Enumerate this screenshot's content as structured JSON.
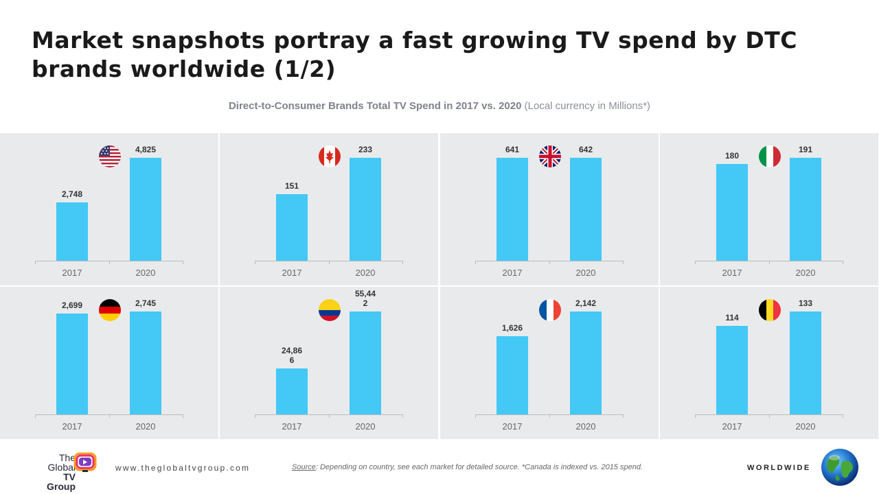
{
  "title": "Market snapshots portray a fast growing TV spend by DTC brands worldwide (1/2)",
  "subtitle_bold": "Direct-to-Consumer Brands Total TV Spend in 2017 vs. 2020",
  "subtitle_rest": "(Local currency in Millions*)",
  "colors": {
    "bar": "#44c8f5",
    "panel": "#e9eaec",
    "axis": "#b9bbbf",
    "label": "#333333",
    "tick": "#666666"
  },
  "chart_data": [
    {
      "type": "bar",
      "market": "United States",
      "flag_icon": "us-flag-icon",
      "categories": [
        "2017",
        "2020"
      ],
      "values": [
        2748,
        4825
      ],
      "value_labels": [
        "2,748",
        "4,825"
      ]
    },
    {
      "type": "bar",
      "market": "Canada",
      "flag_icon": "canada-flag-icon",
      "categories": [
        "2017",
        "2020"
      ],
      "values": [
        151,
        233
      ],
      "value_labels": [
        "151",
        "233"
      ]
    },
    {
      "type": "bar",
      "market": "United Kingdom",
      "flag_icon": "uk-flag-icon",
      "categories": [
        "2017",
        "2020"
      ],
      "values": [
        641,
        642
      ],
      "value_labels": [
        "641",
        "642"
      ]
    },
    {
      "type": "bar",
      "market": "Italy",
      "flag_icon": "italy-flag-icon",
      "categories": [
        "2017",
        "2020"
      ],
      "values": [
        180,
        191
      ],
      "value_labels": [
        "180",
        "191"
      ]
    },
    {
      "type": "bar",
      "market": "Germany",
      "flag_icon": "germany-flag-icon",
      "categories": [
        "2017",
        "2020"
      ],
      "values": [
        2699,
        2745
      ],
      "value_labels": [
        "2,699",
        "2,745"
      ]
    },
    {
      "type": "bar",
      "market": "Colombia",
      "flag_icon": "colombia-flag-icon",
      "categories": [
        "2017",
        "2020"
      ],
      "values": [
        24866,
        55442
      ],
      "value_labels": [
        "24,866",
        "55,442"
      ]
    },
    {
      "type": "bar",
      "market": "France",
      "flag_icon": "france-flag-icon",
      "categories": [
        "2017",
        "2020"
      ],
      "values": [
        1626,
        2142
      ],
      "value_labels": [
        "1,626",
        "2,142"
      ]
    },
    {
      "type": "bar",
      "market": "Belgium",
      "flag_icon": "belgium-flag-icon",
      "categories": [
        "2017",
        "2020"
      ],
      "values": [
        114,
        133
      ],
      "value_labels": [
        "114",
        "133"
      ]
    }
  ],
  "footer": {
    "logo_line1": "The",
    "logo_line2": "Global",
    "logo_line3": "TV Group",
    "url": "www.theglobaltvgroup.com",
    "source_label": "Source",
    "source_text": ": Depending on country, see each market for detailed source. *Canada is indexed vs. 2015 spend.",
    "region": "WORLDWIDE"
  }
}
